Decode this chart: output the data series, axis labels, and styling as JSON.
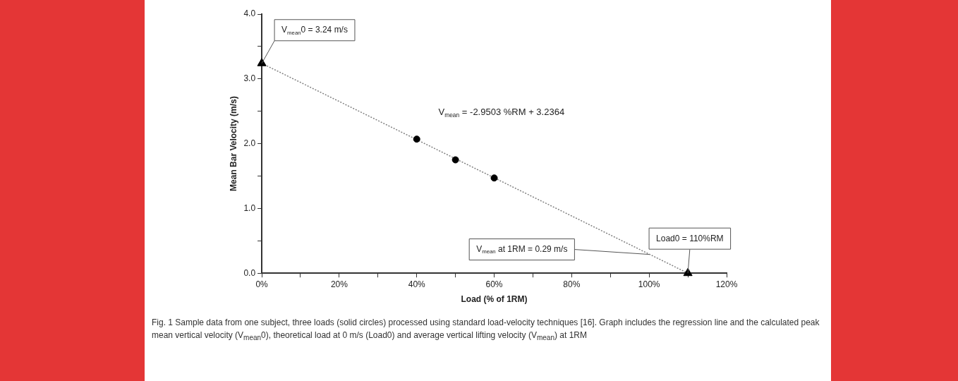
{
  "chart_data": {
    "type": "scatter",
    "xlabel": "Load (% of 1RM)",
    "ylabel": "Mean Bar Velocity (m/s)",
    "xlim": [
      0,
      120
    ],
    "ylim": [
      0,
      4
    ],
    "xticks": [
      {
        "value": 0,
        "label": "0%"
      },
      {
        "value": 10,
        "label": null
      },
      {
        "value": 20,
        "label": "20%"
      },
      {
        "value": 30,
        "label": null
      },
      {
        "value": 40,
        "label": "40%"
      },
      {
        "value": 50,
        "label": null
      },
      {
        "value": 60,
        "label": "60%"
      },
      {
        "value": 70,
        "label": null
      },
      {
        "value": 80,
        "label": "80%"
      },
      {
        "value": 90,
        "label": null
      },
      {
        "value": 100,
        "label": "100%"
      },
      {
        "value": 110,
        "label": null
      },
      {
        "value": 120,
        "label": "120%"
      }
    ],
    "yticks": [
      {
        "value": 0,
        "label": "0.0"
      },
      {
        "value": 0.5,
        "label": null
      },
      {
        "value": 1,
        "label": "1.0"
      },
      {
        "value": 1.5,
        "label": null
      },
      {
        "value": 2,
        "label": "2.0"
      },
      {
        "value": 2.5,
        "label": null
      },
      {
        "value": 3,
        "label": "3.0"
      },
      {
        "value": 3.5,
        "label": null
      },
      {
        "value": 4,
        "label": "4.0"
      }
    ],
    "grid": false,
    "legend": false,
    "series": [
      {
        "x": [
          40,
          50,
          60
        ],
        "values": [
          2.07,
          1.75,
          1.47
        ],
        "color": "#000000",
        "marker": "circle"
      },
      {
        "x": [
          0,
          110
        ],
        "values": [
          3.24,
          0
        ],
        "color": "#000000",
        "marker": "triangle"
      },
      {
        "type": "line",
        "x": [
          0,
          110
        ],
        "values": [
          3.24,
          0
        ],
        "color": "#808080",
        "line_style": "dotted",
        "marker": "none"
      }
    ],
    "annotations": [
      {
        "text": "V$_{mean}$0 = 3.24 m/s",
        "x": 0,
        "y": 3.24
      },
      "V$_{mean}$ = -2.9503 %RM + 3.2364",
      {
        "text": "V$_{mean}$ at 1RM = 0.29 m/s",
        "x": 100,
        "y": 0.29
      },
      {
        "text": "Load0 = 110%RM",
        "x": 110,
        "y": 0
      },
      "Fig. 1 Sample data from one subject, three loads (solid circles) processed using standard load-velocity techniques [16]. Graph includes the regression line and the calculated peak mean vertical velocity (V$_{mean}$0), theoretical load at 0 m/s (Load0) and average vertical lifting velocity (V$_{mean}$) at 1RM"
    ]
  }
}
